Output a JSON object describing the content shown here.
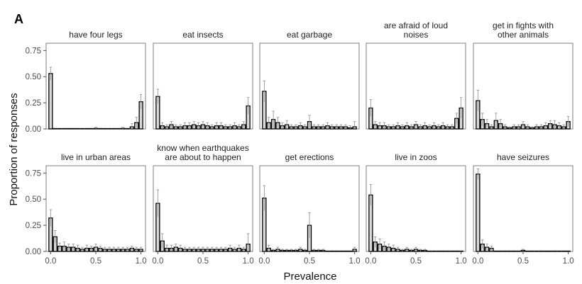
{
  "figure": {
    "panel_label": "A",
    "xlabel": "Prevalence",
    "ylabel": "Proportion of responses"
  },
  "chart_data": {
    "type": "bar",
    "xlabel": "Prevalence",
    "ylabel": "Proportion of responses",
    "xlim": [
      -0.05,
      1.05
    ],
    "ylim": [
      0,
      0.82
    ],
    "xticks": [
      0.0,
      0.5,
      1.0
    ],
    "xtick_labels": [
      "0.0",
      "0.5",
      "1.0"
    ],
    "yticks": [
      0.0,
      0.25,
      0.5,
      0.75
    ],
    "ytick_labels": [
      "0.00",
      "0.25",
      "0.50",
      "0.75"
    ],
    "bins": [
      0.0,
      0.05,
      0.1,
      0.15,
      0.2,
      0.25,
      0.3,
      0.35,
      0.4,
      0.45,
      0.5,
      0.55,
      0.6,
      0.65,
      0.7,
      0.75,
      0.8,
      0.85,
      0.9,
      0.95,
      1.0
    ],
    "grid": false,
    "panels": [
      {
        "title": [
          "have four legs"
        ],
        "values": [
          0.53,
          0.0,
          0.0,
          0.0,
          0.0,
          0.0,
          0.0,
          0.0,
          0.0,
          0.0,
          0.005,
          0.0,
          0.0,
          0.0,
          0.0,
          0.0,
          0.005,
          0.0,
          0.02,
          0.06,
          0.26
        ],
        "errors": [
          0.06,
          0.0,
          0.0,
          0.0,
          0.0,
          0.0,
          0.0,
          0.0,
          0.0,
          0.0,
          0.01,
          0.0,
          0.0,
          0.0,
          0.0,
          0.0,
          0.01,
          0.0,
          0.03,
          0.05,
          0.07
        ]
      },
      {
        "title": [
          "eat insects"
        ],
        "values": [
          0.31,
          0.03,
          0.02,
          0.04,
          0.02,
          0.02,
          0.03,
          0.03,
          0.04,
          0.03,
          0.04,
          0.03,
          0.02,
          0.03,
          0.03,
          0.02,
          0.02,
          0.03,
          0.02,
          0.04,
          0.22
        ],
        "errors": [
          0.07,
          0.03,
          0.02,
          0.03,
          0.02,
          0.02,
          0.03,
          0.03,
          0.03,
          0.03,
          0.03,
          0.03,
          0.02,
          0.03,
          0.03,
          0.02,
          0.02,
          0.03,
          0.02,
          0.03,
          0.08
        ]
      },
      {
        "title": [
          "eat garbage"
        ],
        "values": [
          0.36,
          0.06,
          0.09,
          0.06,
          0.03,
          0.04,
          0.02,
          0.02,
          0.03,
          0.02,
          0.07,
          0.02,
          0.02,
          0.02,
          0.03,
          0.02,
          0.02,
          0.02,
          0.02,
          0.01,
          0.02
        ],
        "errors": [
          0.1,
          0.05,
          0.08,
          0.05,
          0.03,
          0.04,
          0.02,
          0.02,
          0.03,
          0.02,
          0.06,
          0.02,
          0.02,
          0.02,
          0.03,
          0.02,
          0.02,
          0.02,
          0.02,
          0.02,
          0.05
        ]
      },
      {
        "title": [
          "are afraid of loud",
          "noises"
        ],
        "values": [
          0.2,
          0.04,
          0.03,
          0.03,
          0.02,
          0.02,
          0.03,
          0.02,
          0.03,
          0.02,
          0.04,
          0.02,
          0.03,
          0.02,
          0.03,
          0.02,
          0.03,
          0.02,
          0.02,
          0.1,
          0.2
        ],
        "errors": [
          0.08,
          0.03,
          0.03,
          0.03,
          0.02,
          0.02,
          0.03,
          0.02,
          0.03,
          0.02,
          0.03,
          0.02,
          0.03,
          0.02,
          0.03,
          0.02,
          0.03,
          0.02,
          0.02,
          0.05,
          0.1
        ]
      },
      {
        "title": [
          "get in fights with",
          "other animals"
        ],
        "values": [
          0.27,
          0.09,
          0.05,
          0.02,
          0.08,
          0.05,
          0.02,
          0.01,
          0.02,
          0.02,
          0.04,
          0.02,
          0.01,
          0.02,
          0.02,
          0.03,
          0.05,
          0.04,
          0.03,
          0.02,
          0.07
        ],
        "errors": [
          0.1,
          0.06,
          0.04,
          0.02,
          0.07,
          0.04,
          0.02,
          0.01,
          0.02,
          0.02,
          0.03,
          0.02,
          0.01,
          0.02,
          0.02,
          0.03,
          0.03,
          0.04,
          0.03,
          0.02,
          0.05
        ]
      },
      {
        "title": [
          "live in urban areas"
        ],
        "values": [
          0.32,
          0.14,
          0.05,
          0.05,
          0.04,
          0.04,
          0.03,
          0.02,
          0.03,
          0.03,
          0.04,
          0.03,
          0.02,
          0.02,
          0.02,
          0.02,
          0.02,
          0.02,
          0.03,
          0.02,
          0.02
        ],
        "errors": [
          0.08,
          0.06,
          0.03,
          0.04,
          0.03,
          0.03,
          0.03,
          0.02,
          0.03,
          0.02,
          0.03,
          0.02,
          0.02,
          0.02,
          0.02,
          0.02,
          0.02,
          0.02,
          0.02,
          0.02,
          0.02
        ]
      },
      {
        "title": [
          "know when earthquakes",
          "are about to happen"
        ],
        "values": [
          0.46,
          0.1,
          0.03,
          0.03,
          0.04,
          0.03,
          0.02,
          0.02,
          0.02,
          0.02,
          0.02,
          0.02,
          0.02,
          0.02,
          0.02,
          0.02,
          0.03,
          0.02,
          0.03,
          0.02,
          0.07
        ],
        "errors": [
          0.13,
          0.07,
          0.03,
          0.03,
          0.03,
          0.03,
          0.02,
          0.02,
          0.02,
          0.02,
          0.02,
          0.02,
          0.02,
          0.02,
          0.02,
          0.02,
          0.03,
          0.02,
          0.03,
          0.02,
          0.1
        ]
      },
      {
        "title": [
          "get erections"
        ],
        "values": [
          0.51,
          0.03,
          0.01,
          0.02,
          0.01,
          0.01,
          0.01,
          0.01,
          0.02,
          0.01,
          0.25,
          0.01,
          0.01,
          0.01,
          0.0,
          0.0,
          0.0,
          0.0,
          0.0,
          0.0,
          0.02
        ],
        "errors": [
          0.12,
          0.03,
          0.01,
          0.02,
          0.01,
          0.01,
          0.01,
          0.01,
          0.02,
          0.01,
          0.12,
          0.01,
          0.01,
          0.01,
          0.0,
          0.0,
          0.0,
          0.0,
          0.0,
          0.0,
          0.02
        ]
      },
      {
        "title": [
          "live in zoos"
        ],
        "values": [
          0.54,
          0.09,
          0.07,
          0.05,
          0.04,
          0.03,
          0.02,
          0.01,
          0.02,
          0.01,
          0.02,
          0.01,
          0.01,
          0.0,
          0.0,
          0.0,
          0.0,
          0.0,
          0.0,
          0.0,
          0.0
        ],
        "errors": [
          0.1,
          0.05,
          0.05,
          0.04,
          0.03,
          0.03,
          0.02,
          0.01,
          0.02,
          0.01,
          0.02,
          0.01,
          0.01,
          0.0,
          0.0,
          0.0,
          0.0,
          0.0,
          0.0,
          0.0,
          0.0
        ]
      },
      {
        "title": [
          "have seizures"
        ],
        "values": [
          0.74,
          0.07,
          0.04,
          0.03,
          0.0,
          0.0,
          0.0,
          0.0,
          0.0,
          0.0,
          0.01,
          0.0,
          0.0,
          0.0,
          0.0,
          0.0,
          0.0,
          0.0,
          0.0,
          0.0,
          0.0
        ],
        "errors": [
          0.05,
          0.04,
          0.03,
          0.02,
          0.0,
          0.0,
          0.0,
          0.0,
          0.0,
          0.0,
          0.01,
          0.0,
          0.0,
          0.0,
          0.0,
          0.0,
          0.0,
          0.0,
          0.0,
          0.0,
          0.0
        ]
      }
    ]
  }
}
